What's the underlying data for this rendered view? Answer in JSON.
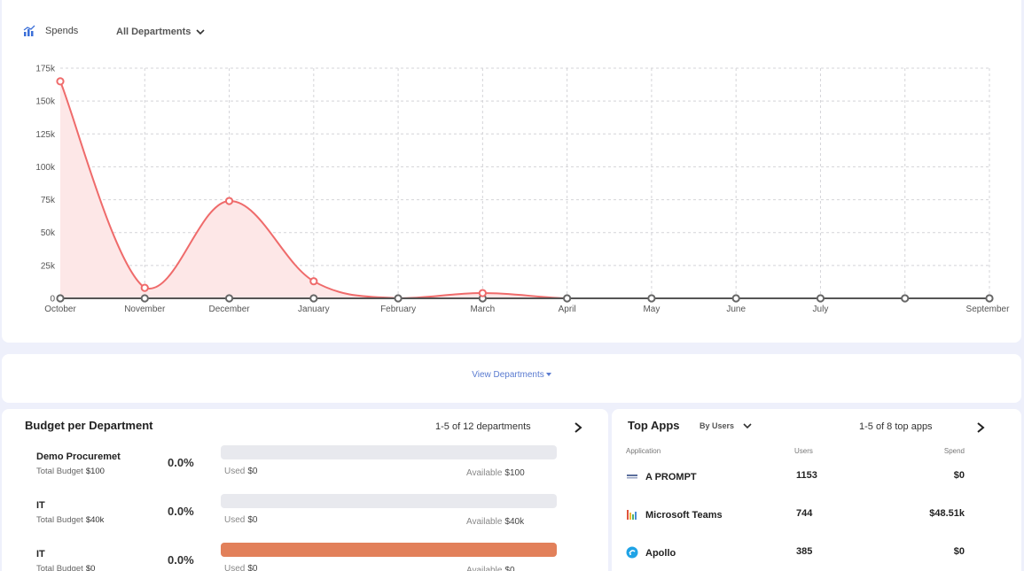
{
  "spends": {
    "label": "Spends",
    "icon": "bar-chart-icon",
    "department_filter": "All Departments"
  },
  "chart_data": {
    "type": "area",
    "title": "",
    "categories": [
      "October",
      "November",
      "December",
      "January",
      "February",
      "March",
      "April",
      "May",
      "June",
      "July",
      "",
      "September"
    ],
    "values": [
      165000,
      8000,
      74000,
      13000,
      0,
      4000,
      0,
      0,
      0,
      0,
      0,
      0
    ],
    "baseline": [
      0,
      0,
      0,
      0,
      0,
      0,
      0,
      0,
      0,
      0,
      0,
      0
    ],
    "y_ticks": [
      "0",
      "25k",
      "50k",
      "75k",
      "100k",
      "125k",
      "150k",
      "175k"
    ],
    "ylim": [
      0,
      175000
    ],
    "xlabel": "",
    "ylabel": "",
    "grid": true,
    "color": "#ef6b6b",
    "fill_color": "#fde7e7"
  },
  "view_departments": "View Departments",
  "budget": {
    "title": "Budget per Department",
    "pager": "1-5 of 12 departments",
    "total_label": "Total Budget",
    "used_label": "Used",
    "available_label": "Available",
    "rows": [
      {
        "name": "Demo Procuremet",
        "total": "$100",
        "pct": "0.0%",
        "used": "$0",
        "available": "$100",
        "fill": 0
      },
      {
        "name": "IT",
        "total": "$40k",
        "pct": "0.0%",
        "used": "$0",
        "available": "$40k",
        "fill": 0
      },
      {
        "name": "IT",
        "total": "$0",
        "pct": "0.0%",
        "used": "$0",
        "available": "$0",
        "fill": 1
      }
    ]
  },
  "top_apps": {
    "title": "Top Apps",
    "sort": "By Users",
    "pager": "1-5 of 8 top apps",
    "col_application": "Application",
    "col_users": "Users",
    "col_spend": "Spend",
    "rows": [
      {
        "name": "A PROMPT",
        "users": "1153",
        "spend": "$0",
        "icon": "prompt-logo-icon"
      },
      {
        "name": "Microsoft Teams",
        "users": "744",
        "spend": "$48.51k",
        "icon": "teams-logo-icon"
      },
      {
        "name": "Apollo",
        "users": "385",
        "spend": "$0",
        "icon": "apollo-logo-icon"
      }
    ]
  }
}
